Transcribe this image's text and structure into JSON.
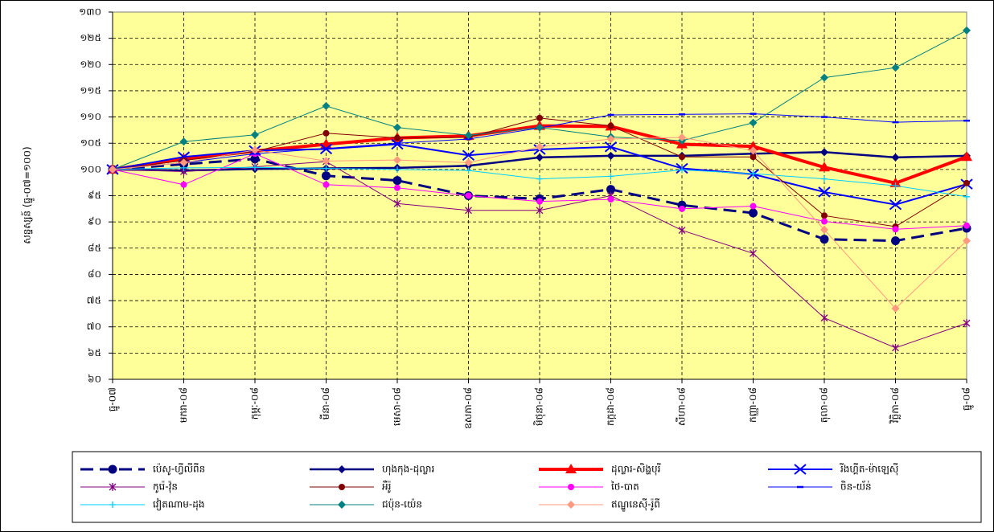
{
  "chart_data": {
    "type": "line",
    "y_label": "សន្ទស្សន៍ (ធ្នូ-០៧=១០០)",
    "categories": [
      "ធ្នូ-០៧",
      "មករា-០៨",
      "កុម្ភៈ-០៨",
      "មីនា-០៨",
      "មេសា-០៨",
      "ឧសភា-០៨",
      "មិថុនា-០៨",
      "កក្កដា-០៨",
      "សីហា-០៨",
      "កញ្ញា-០៨",
      "តុលា-០៨",
      "វិច្ឆិកា-០៨",
      "ធ្នូ-០៨"
    ],
    "ylim": [
      60,
      130
    ],
    "yticks": [
      {
        "value": 60,
        "label": "៦០"
      },
      {
        "value": 65,
        "label": "៦៥"
      },
      {
        "value": 70,
        "label": "៧០"
      },
      {
        "value": 75,
        "label": "៧៥"
      },
      {
        "value": 80,
        "label": "៨០"
      },
      {
        "value": 85,
        "label": "៨៥"
      },
      {
        "value": 90,
        "label": "៩០"
      },
      {
        "value": 95,
        "label": "៩៥"
      },
      {
        "value": 100,
        "label": "១០០"
      },
      {
        "value": 105,
        "label": "១០៥"
      },
      {
        "value": 110,
        "label": "១១០"
      },
      {
        "value": 115,
        "label": "១១៥"
      },
      {
        "value": 120,
        "label": "១២០"
      },
      {
        "value": 125,
        "label": "១២៥"
      },
      {
        "value": 130,
        "label": "១៣០"
      }
    ],
    "grid": true,
    "legend": "bottom",
    "series": [
      {
        "name": "ប៉េសូ-ហ្វីលីពីន",
        "color": "#000080",
        "width": 3,
        "dash": true,
        "marker": "circle",
        "values": [
          100,
          101,
          102,
          98.8,
          97.9,
          95,
          94.4,
          96.2,
          93.2,
          91.7,
          86.7,
          86.4,
          88.8
        ]
      },
      {
        "name": "ហុងកុង-ដុល្លារ",
        "color": "#000080",
        "width": 2.5,
        "dash": false,
        "marker": "diamond",
        "values": [
          100,
          99.8,
          100.1,
          100.2,
          100.3,
          100.7,
          102.3,
          102.6,
          102.6,
          103,
          103.3,
          102.3,
          102.6
        ]
      },
      {
        "name": "ដុល្លារ-សិង្ហបុរី",
        "color": "#ff0000",
        "width": 4,
        "dash": false,
        "marker": "triangle",
        "values": [
          100,
          102,
          103.5,
          104.8,
          106,
          106.4,
          108.3,
          108.2,
          104.8,
          104.4,
          100.4,
          97.4,
          102.4
        ]
      },
      {
        "name": "រីងហ្គីត-ម៉ាឡេស៊ី",
        "color": "#0000ff",
        "width": 2,
        "dash": false,
        "marker": "x",
        "values": [
          100,
          102.4,
          103.6,
          103.9,
          104.8,
          102.7,
          103.8,
          104.3,
          100.2,
          99.1,
          95.7,
          93.3,
          97.2
        ]
      },
      {
        "name": "កូរ៉េ-វ៉ុន",
        "color": "#800080",
        "width": 1,
        "dash": false,
        "marker": "star",
        "values": [
          100,
          99.6,
          100.5,
          101.5,
          93.5,
          92.2,
          92.2,
          95,
          88.4,
          84,
          71.7,
          66,
          70.7
        ]
      },
      {
        "name": "អឺរ៉ូ",
        "color": "#800000",
        "width": 1,
        "dash": false,
        "marker": "circle",
        "values": [
          100,
          101.7,
          103.4,
          106.9,
          106,
          106.1,
          109.8,
          108.3,
          102.4,
          102.4,
          91.2,
          89.1,
          97.4
        ]
      },
      {
        "name": "ថៃ-បាត",
        "color": "#ff00ff",
        "width": 1,
        "dash": false,
        "marker": "circle",
        "values": [
          100,
          97.1,
          103,
          97.1,
          96.5,
          95,
          93.9,
          94.3,
          92.5,
          93,
          90.1,
          88.6,
          89.3
        ]
      },
      {
        "name": "ចិន-យ័ន់",
        "color": "#0000ff",
        "width": 1,
        "dash": false,
        "marker": "dash",
        "values": [
          100,
          101.3,
          103,
          104,
          105,
          105.8,
          107.9,
          110.4,
          110.5,
          110.6,
          110,
          109,
          109.3
        ]
      },
      {
        "name": "វៀតណាម-ដុង",
        "color": "#00ccff",
        "width": 1,
        "dash": false,
        "marker": "plus",
        "values": [
          100,
          100.3,
          100.4,
          100.2,
          100,
          99.8,
          98.2,
          98.7,
          99.9,
          99.2,
          98.2,
          96.9,
          94.8
        ]
      },
      {
        "name": "ជប៉ុន-យ៉េន",
        "color": "#008080",
        "width": 1,
        "dash": false,
        "marker": "diamond",
        "values": [
          100,
          105.3,
          106.6,
          112.1,
          108,
          106.5,
          108,
          106.2,
          105.5,
          108.9,
          117.5,
          119.4,
          126.5
        ]
      },
      {
        "name": "ឥណ្ឌូនេស៊ី-រ៉ូពី",
        "color": "#ff9980",
        "width": 1,
        "dash": false,
        "marker": "diamond",
        "values": [
          100,
          101.3,
          103.7,
          101.6,
          101.8,
          101.3,
          104.3,
          105.8,
          106.1,
          103.6,
          88.5,
          73.5,
          86.4
        ]
      }
    ]
  }
}
